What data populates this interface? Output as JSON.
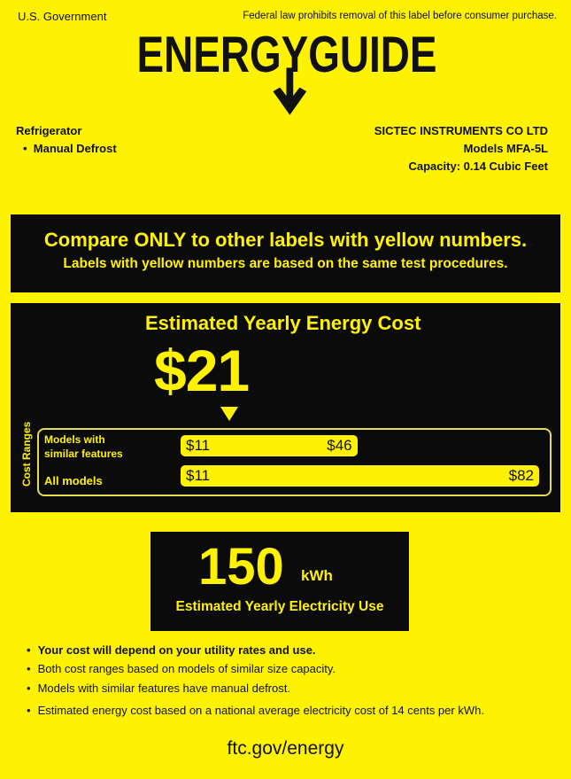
{
  "header": {
    "government": "U.S. Government",
    "federal_notice": "Federal law prohibits removal of this label before consumer purchase.",
    "logo_text": "ENERGYGUIDE"
  },
  "appliance": {
    "type": "Refrigerator",
    "features": [
      "Manual Defrost"
    ]
  },
  "manufacturer": {
    "name": "SICTEC INSTRUMENTS CO LTD",
    "model": "Models MFA-5L",
    "capacity": "Capacity: 0.14 Cubic Feet"
  },
  "compare": {
    "line1": "Compare ONLY to other labels with yellow numbers.",
    "line2": "Labels with yellow numbers are based on the same test procedures."
  },
  "cost": {
    "title": "Estimated Yearly Energy Cost",
    "value": "$21",
    "value_number": 21,
    "ranges_label": "Cost Ranges",
    "ranges": [
      {
        "label_line1": "Models with",
        "label_line2": "similar features",
        "min": 11,
        "max": 46,
        "min_label": "$11",
        "max_label": "$46"
      },
      {
        "label_line1": "All models",
        "label_line2": "",
        "min": 11,
        "max": 82,
        "min_label": "$11",
        "max_label": "$82"
      }
    ]
  },
  "electricity": {
    "value": "150",
    "unit": "kWh",
    "label": "Estimated Yearly Electricity Use"
  },
  "notes": [
    "Your cost will depend on your utility rates and use.",
    "Both cost ranges based on models of similar size capacity.",
    "Models with similar features have manual defrost.",
    "Estimated energy cost based on a national average electricity cost of 14 cents per kWh."
  ],
  "footer": {
    "url": "ftc.gov/energy"
  },
  "colors": {
    "label_yellow": "#fff200",
    "panel_black": "#0b0b0b"
  }
}
